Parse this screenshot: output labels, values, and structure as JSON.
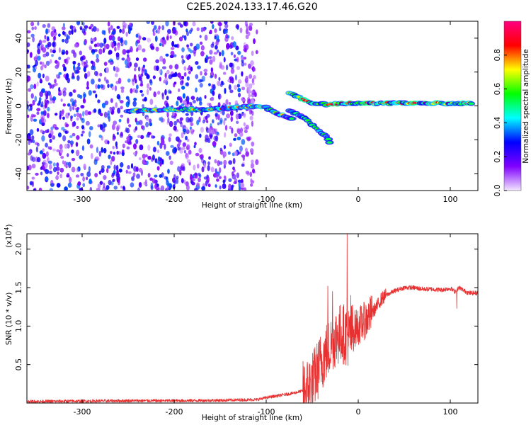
{
  "title": "C2E5.2024.133.17.46.G20",
  "chart_data": [
    {
      "type": "heatmap",
      "xlabel": "Height of straight line (km)",
      "ylabel": "Frequency (Hz)",
      "xlim": [
        -360,
        130
      ],
      "ylim": [
        -50,
        50
      ],
      "x_ticks": [
        -300,
        -200,
        -100,
        0,
        100
      ],
      "y_ticks": [
        -40,
        -20,
        0,
        20,
        40
      ],
      "x_tick_labels": [
        "-300",
        "-200",
        "-100",
        "0",
        "100"
      ],
      "y_tick_labels": [
        "-40",
        "-20",
        "0",
        "20",
        "40"
      ],
      "colorbar": {
        "label": "Normalized spectral amplitude",
        "range": [
          0,
          1
        ],
        "ticks": [
          0.0,
          0.2,
          0.4,
          0.6,
          0.8
        ],
        "tick_labels": [
          "0.0",
          "0.2",
          "0.4",
          "0.6",
          "0.8"
        ],
        "colormap": [
          "#f2e6ff",
          "#8000ff",
          "#0000ff",
          "#00ffff",
          "#00ff00",
          "#ffff00",
          "#ff0000",
          "#ff0080"
        ]
      },
      "noise_region": {
        "x_range": [
          -360,
          -125
        ],
        "y_range": [
          -50,
          50
        ],
        "amplitude": [
          0.05,
          0.35
        ]
      },
      "ridges": [
        {
          "name": "main",
          "points": [
            [
              -250,
              -3
            ],
            [
              -200,
              -2
            ],
            [
              -160,
              -2
            ],
            [
              -130,
              -1
            ],
            [
              -110,
              0
            ],
            [
              -100,
              -1
            ],
            [
              -90,
              -4
            ],
            [
              -80,
              -6
            ],
            [
              -70,
              -8
            ]
          ],
          "amplitude": [
            0.3,
            0.8
          ]
        },
        {
          "name": "upper",
          "points": [
            [
              -75,
              8
            ],
            [
              -65,
              5
            ],
            [
              -55,
              3
            ],
            [
              -45,
              1
            ],
            [
              -35,
              1
            ],
            [
              -25,
              1.5
            ],
            [
              0,
              1.5
            ],
            [
              50,
              1.5
            ],
            [
              100,
              1.5
            ],
            [
              125,
              1.5
            ]
          ],
          "amplitude": [
            0.45,
            0.95
          ]
        },
        {
          "name": "lower",
          "points": [
            [
              -75,
              -3
            ],
            [
              -65,
              -5
            ],
            [
              -55,
              -9
            ],
            [
              -45,
              -13
            ],
            [
              -35,
              -18
            ],
            [
              -30,
              -22
            ]
          ],
          "amplitude": [
            0.35,
            0.6
          ]
        }
      ]
    },
    {
      "type": "line",
      "xlabel": "Height of straight line (km)",
      "ylabel": "SNR (10 * v/v)",
      "y_multiplier": "(x10",
      "y_multiplier_exp": "4",
      "y_multiplier_close": ")",
      "xlim": [
        -360,
        130
      ],
      "ylim": [
        0,
        22000
      ],
      "x_ticks": [
        -300,
        -200,
        -100,
        0,
        100
      ],
      "y_ticks": [
        5000,
        10000,
        15000,
        20000
      ],
      "x_tick_labels": [
        "-300",
        "-200",
        "-100",
        "0",
        "100"
      ],
      "y_tick_labels": [
        "0.5",
        "1.0",
        "1.5",
        "2.0"
      ],
      "color": "#e83030",
      "series": [
        {
          "x": [
            -360,
            -300,
            -250,
            -200,
            -150,
            -110,
            -100,
            -90,
            -80,
            -70,
            -60,
            -55,
            -50,
            -45,
            -40,
            -35,
            -30,
            -25,
            -20,
            -15,
            -10,
            -5,
            0,
            10,
            20,
            25,
            30,
            40,
            50,
            60,
            70,
            80,
            90,
            100,
            105,
            110,
            115,
            120,
            130
          ],
          "values": [
            200,
            250,
            300,
            300,
            350,
            450,
            700,
            900,
            1100,
            1300,
            1600,
            2000,
            2800,
            4000,
            5500,
            6500,
            7500,
            8500,
            9000,
            9000,
            8500,
            9500,
            10000,
            11000,
            12500,
            13500,
            14000,
            14600,
            15000,
            15000,
            14800,
            14800,
            14700,
            14900,
            14500,
            15000,
            14600,
            14300,
            14300
          ]
        }
      ],
      "noise": [
        {
          "x_range": [
            -360,
            -60
          ],
          "amplitude": 200
        },
        {
          "x_range": [
            -60,
            -5
          ],
          "amplitude": 4000
        },
        {
          "x_range": [
            -5,
            15
          ],
          "amplitude": 2500
        },
        {
          "x_range": [
            15,
            30
          ],
          "amplitude": 900
        },
        {
          "x_range": [
            30,
            130
          ],
          "amplitude": 300
        }
      ],
      "spikes": [
        {
          "x": -33,
          "value": 15200
        },
        {
          "x": -28,
          "value": 14500
        },
        {
          "x": -12,
          "value": 22000
        },
        {
          "x": -8,
          "value": 14000
        },
        {
          "x": 12,
          "value": 12000
        },
        {
          "x": 107,
          "value": 12300
        }
      ]
    }
  ]
}
